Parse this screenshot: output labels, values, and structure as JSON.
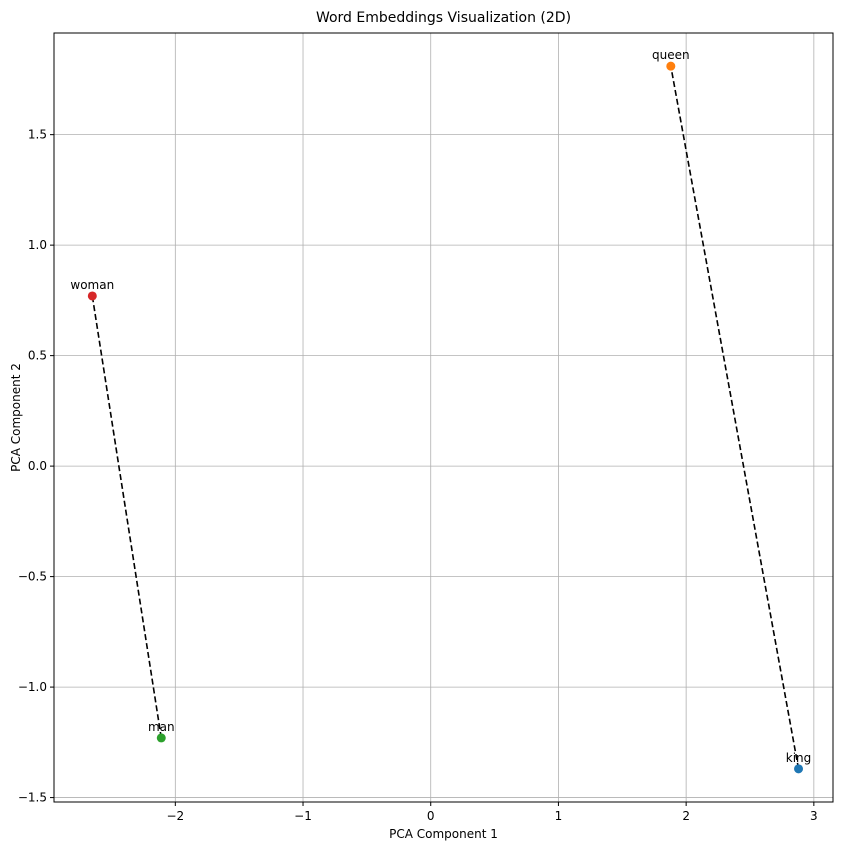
{
  "chart_data": {
    "type": "scatter",
    "title": "Word Embeddings Visualization (2D)",
    "xlabel": "PCA Component 1",
    "ylabel": "PCA Component 2",
    "xlim": [
      -2.95,
      3.15
    ],
    "ylim": [
      -1.52,
      1.96
    ],
    "x_ticks": [
      -2,
      -1,
      0,
      1,
      2,
      3
    ],
    "y_ticks": [
      -1.5,
      -1.0,
      -0.5,
      0.0,
      0.5,
      1.0,
      1.5
    ],
    "x_tick_labels": [
      "−2",
      "−1",
      "0",
      "1",
      "2",
      "3"
    ],
    "y_tick_labels": [
      "−1.5",
      "−1.0",
      "−0.5",
      "0.0",
      "0.5",
      "1.0",
      "1.5"
    ],
    "grid": true,
    "points": [
      {
        "label": "king",
        "x": 2.88,
        "y": -1.37,
        "color": "#1f77b4"
      },
      {
        "label": "queen",
        "x": 1.88,
        "y": 1.81,
        "color": "#ff7f0e"
      },
      {
        "label": "man",
        "x": -2.11,
        "y": -1.23,
        "color": "#2ca02c"
      },
      {
        "label": "woman",
        "x": -2.65,
        "y": 0.77,
        "color": "#d62728"
      }
    ],
    "connections": [
      {
        "from": "king",
        "to": "queen",
        "style": "dashed",
        "color": "#000000"
      },
      {
        "from": "man",
        "to": "woman",
        "style": "dashed",
        "color": "#000000"
      }
    ]
  }
}
